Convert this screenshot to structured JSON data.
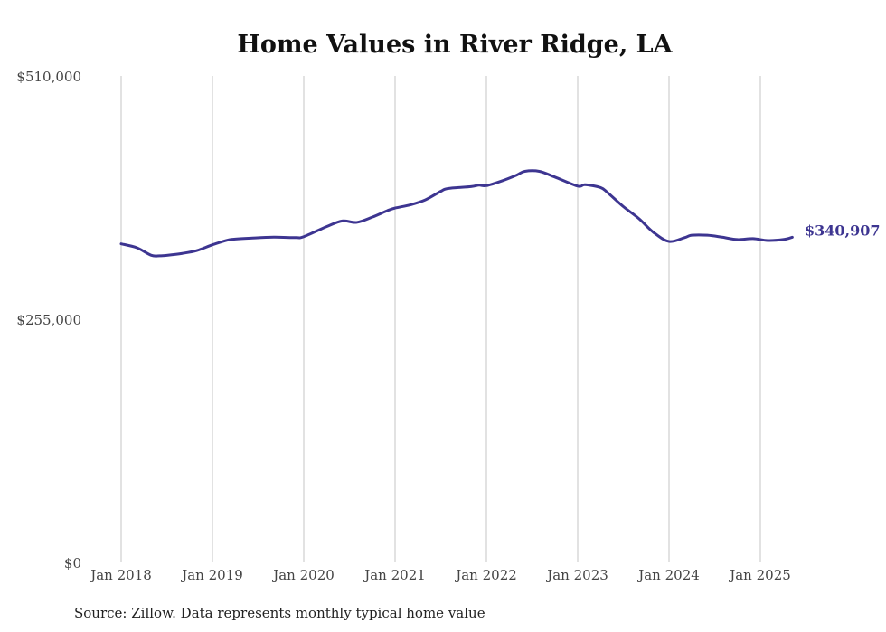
{
  "chart_data": {
    "type": "line",
    "title": "Home Values in River Ridge, LA",
    "ylim": [
      0,
      510000
    ],
    "y_ticks": [
      {
        "value": 0,
        "label": "$0"
      },
      {
        "value": 255000,
        "label": "$255,000"
      },
      {
        "value": 510000,
        "label": "$510,000"
      }
    ],
    "x_ticks": [
      {
        "value": 2018,
        "label": "Jan 2018"
      },
      {
        "value": 2019,
        "label": "Jan 2019"
      },
      {
        "value": 2020,
        "label": "Jan 2020"
      },
      {
        "value": 2021,
        "label": "Jan 2021"
      },
      {
        "value": 2022,
        "label": "Jan 2022"
      },
      {
        "value": 2023,
        "label": "Jan 2023"
      },
      {
        "value": 2024,
        "label": "Jan 2024"
      },
      {
        "value": 2025,
        "label": "Jan 2025"
      }
    ],
    "grid": "vertical at x ticks",
    "color": "#3d3591",
    "series": [
      {
        "name": "",
        "x": [
          2018.0,
          2018.17,
          2018.33,
          2018.42,
          2018.5,
          2018.67,
          2018.83,
          2019.0,
          2019.17,
          2019.25,
          2019.42,
          2019.67,
          2019.92,
          2020.0,
          2020.25,
          2020.42,
          2020.58,
          2020.75,
          2020.92,
          2021.0,
          2021.17,
          2021.33,
          2021.5,
          2021.58,
          2021.83,
          2021.92,
          2022.0,
          2022.17,
          2022.33,
          2022.42,
          2022.58,
          2022.75,
          2023.0,
          2023.08,
          2023.25,
          2023.33,
          2023.5,
          2023.67,
          2023.83,
          2024.0,
          2024.17,
          2024.25,
          2024.42,
          2024.58,
          2024.75,
          2024.92,
          2025.08,
          2025.25,
          2025.35
        ],
        "y": [
          334000,
          330000,
          322000,
          321500,
          322000,
          324000,
          327000,
          333000,
          338000,
          339000,
          340000,
          341000,
          340500,
          341500,
          352000,
          358000,
          356500,
          362000,
          369000,
          371500,
          375000,
          380000,
          389000,
          392000,
          394000,
          395500,
          395000,
          400000,
          406000,
          410000,
          410000,
          404000,
          394500,
          396000,
          393000,
          387500,
          373000,
          360500,
          346000,
          336500,
          340500,
          343000,
          343000,
          341000,
          338500,
          339500,
          337500,
          338500,
          340907
        ]
      }
    ],
    "end_label": "$340,907",
    "source": "Source: Zillow. Data represents monthly typical home value"
  }
}
